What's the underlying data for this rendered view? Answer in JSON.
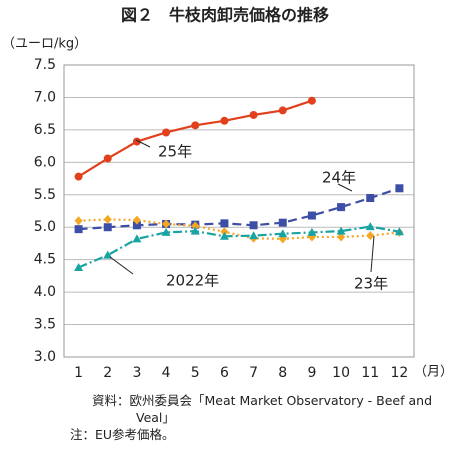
{
  "chart_data": {
    "type": "line",
    "title": "図２　牛枝肉卸売価格の推移",
    "y_unit": "（ユーロ/kg）",
    "x_unit": "（月）",
    "categories": [
      "1",
      "2",
      "3",
      "4",
      "5",
      "6",
      "7",
      "8",
      "9",
      "10",
      "11",
      "12"
    ],
    "ylim": [
      3.0,
      7.5
    ],
    "yticks": [
      {
        "value": 3.0,
        "label": "3.0"
      },
      {
        "value": 3.5,
        "label": "3.5"
      },
      {
        "value": 4.0,
        "label": "4.0"
      },
      {
        "value": 4.5,
        "label": "4.5"
      },
      {
        "value": 5.0,
        "label": "5.0"
      },
      {
        "value": 5.5,
        "label": "5.5"
      },
      {
        "value": 6.0,
        "label": "6.0"
      },
      {
        "value": 6.5,
        "label": "6.5"
      },
      {
        "value": 7.0,
        "label": "7.0"
      },
      {
        "value": 7.5,
        "label": "7.5"
      }
    ],
    "grid": true,
    "series": [
      {
        "name": "25年",
        "color": "#e2401c",
        "values": [
          5.78,
          6.06,
          6.32,
          6.46,
          6.57,
          6.64,
          6.73,
          6.8,
          6.95,
          null,
          null,
          null
        ]
      },
      {
        "name": "24年",
        "color": "#3d4ea6",
        "values": [
          4.97,
          5.0,
          5.03,
          5.05,
          5.04,
          5.06,
          5.03,
          5.07,
          5.18,
          5.31,
          5.45,
          5.6
        ]
      },
      {
        "name": "23年",
        "color": "#f5a623",
        "values": [
          5.1,
          5.12,
          5.11,
          5.05,
          5.02,
          4.93,
          4.83,
          4.82,
          4.85,
          4.85,
          4.87,
          4.92
        ]
      },
      {
        "name": "2022年",
        "color": "#1aa3a3",
        "values": [
          4.38,
          4.57,
          4.82,
          4.92,
          4.94,
          4.86,
          4.87,
          4.9,
          4.92,
          4.94,
          5.01,
          4.93
        ]
      }
    ],
    "notes": [
      "資料：欧州委員会「Meat Market Observatory - Beef and Veal」",
      "注：EU参考価格。"
    ]
  }
}
